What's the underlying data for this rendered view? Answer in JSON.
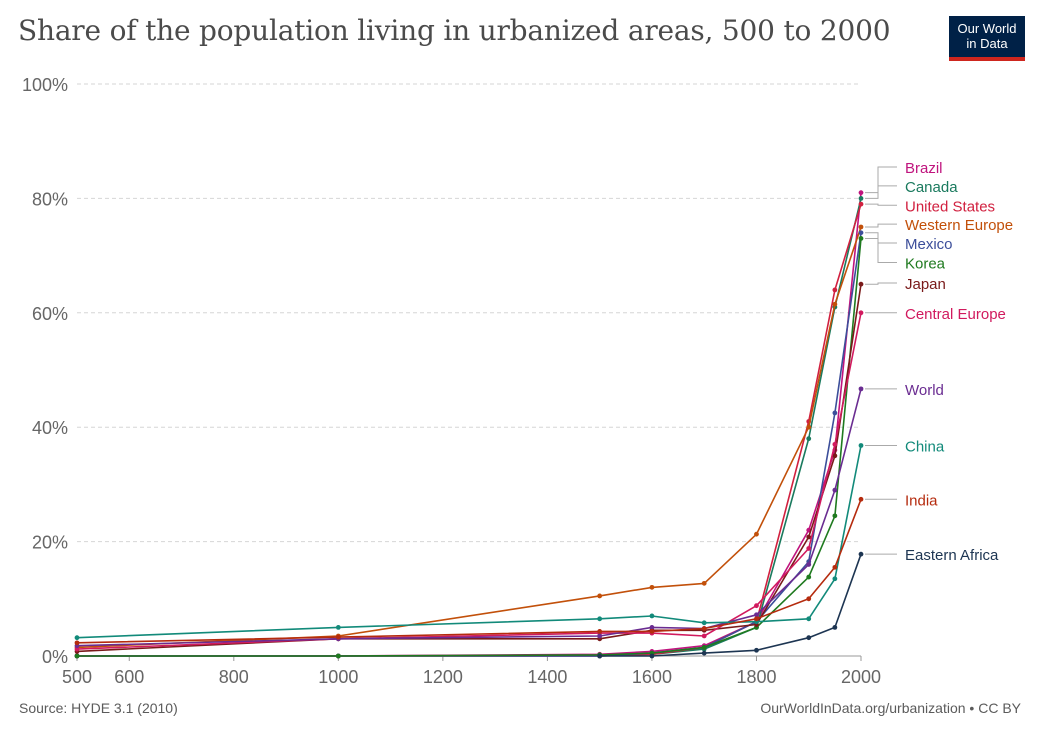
{
  "header": {
    "title": "Share of the population living in urbanized areas, 500 to 2000",
    "logo_line1": "Our World",
    "logo_line2": "in Data"
  },
  "footer": {
    "source": "Source: HYDE 3.1 (2010)",
    "credit": "OurWorldInData.org/urbanization • CC BY"
  },
  "chart_data": {
    "type": "line",
    "title": "Share of the population living in urbanized areas, 500 to 2000",
    "xlabel": "",
    "ylabel": "",
    "xlim": [
      500,
      2000
    ],
    "ylim": [
      0,
      100
    ],
    "x_ticks": [
      500,
      600,
      800,
      1000,
      1200,
      1400,
      1600,
      1800,
      2000
    ],
    "y_ticks": [
      0,
      20,
      40,
      60,
      80,
      100
    ],
    "y_tick_labels": [
      "0%",
      "20%",
      "40%",
      "60%",
      "80%",
      "100%"
    ],
    "grid": "horizontal dashed",
    "legend": "right, labels at line ends",
    "series": [
      {
        "name": "Brazil",
        "color": "#c0147e",
        "label_value": 85.5,
        "points": [
          [
            500,
            0
          ],
          [
            1000,
            0
          ],
          [
            1500,
            0.3
          ],
          [
            1600,
            0.8
          ],
          [
            1700,
            1.8
          ],
          [
            1800,
            6
          ],
          [
            1900,
            22
          ],
          [
            1950,
            36
          ],
          [
            2000,
            81
          ]
        ]
      },
      {
        "name": "Canada",
        "color": "#1a7a5e",
        "label_value": 82.2,
        "points": [
          [
            500,
            0
          ],
          [
            1000,
            0
          ],
          [
            1500,
            0
          ],
          [
            1600,
            0.3
          ],
          [
            1700,
            1.2
          ],
          [
            1800,
            5
          ],
          [
            1900,
            38
          ],
          [
            1950,
            61
          ],
          [
            2000,
            80
          ]
        ]
      },
      {
        "name": "United States",
        "color": "#d1203f",
        "label_value": 78.8,
        "points": [
          [
            500,
            0
          ],
          [
            1000,
            0
          ],
          [
            1500,
            0
          ],
          [
            1600,
            0.3
          ],
          [
            1700,
            1.5
          ],
          [
            1800,
            6
          ],
          [
            1900,
            41
          ],
          [
            1950,
            64
          ],
          [
            2000,
            79
          ]
        ]
      },
      {
        "name": "Western Europe",
        "color": "#c2500a",
        "label_value": 75.5,
        "points": [
          [
            500,
            1.5
          ],
          [
            1000,
            3.5
          ],
          [
            1500,
            10.5
          ],
          [
            1600,
            12
          ],
          [
            1700,
            12.7
          ],
          [
            1800,
            21.3
          ],
          [
            1900,
            40
          ],
          [
            1950,
            61.5
          ],
          [
            2000,
            75
          ]
        ]
      },
      {
        "name": "Mexico",
        "color": "#3c4e9a",
        "label_value": 72.2,
        "points": [
          [
            500,
            0
          ],
          [
            1000,
            0
          ],
          [
            1500,
            0
          ],
          [
            1600,
            0.5
          ],
          [
            1700,
            1.5
          ],
          [
            1800,
            6
          ],
          [
            1900,
            16.5
          ],
          [
            1950,
            42.5
          ],
          [
            2000,
            74
          ]
        ]
      },
      {
        "name": "Korea",
        "color": "#1f7a1f",
        "label_value": 68.8,
        "points": [
          [
            500,
            0
          ],
          [
            1000,
            0
          ],
          [
            1500,
            0.2
          ],
          [
            1600,
            0.5
          ],
          [
            1700,
            1.5
          ],
          [
            1800,
            5
          ],
          [
            1900,
            13.8
          ],
          [
            1950,
            24.5
          ],
          [
            2000,
            73
          ]
        ]
      },
      {
        "name": "Japan",
        "color": "#7a1a1a",
        "label_value": 65.2,
        "points": [
          [
            500,
            0.8
          ],
          [
            1000,
            3
          ],
          [
            1500,
            3
          ],
          [
            1600,
            4.5
          ],
          [
            1700,
            4.5
          ],
          [
            1800,
            5.5
          ],
          [
            1900,
            20.8
          ],
          [
            1950,
            35
          ],
          [
            2000,
            65
          ]
        ]
      },
      {
        "name": "Central Europe",
        "color": "#d11a5e",
        "label_value": 60,
        "points": [
          [
            500,
            1.2
          ],
          [
            1000,
            3
          ],
          [
            1500,
            4
          ],
          [
            1600,
            4
          ],
          [
            1700,
            3.5
          ],
          [
            1800,
            8.8
          ],
          [
            1900,
            18.8
          ],
          [
            1950,
            37
          ],
          [
            2000,
            60
          ]
        ]
      },
      {
        "name": "World",
        "color": "#6a2c91",
        "label_value": 46.7,
        "points": [
          [
            500,
            1.8
          ],
          [
            1000,
            3
          ],
          [
            1500,
            3.5
          ],
          [
            1600,
            5
          ],
          [
            1700,
            4.8
          ],
          [
            1800,
            7.2
          ],
          [
            1900,
            16
          ],
          [
            1950,
            29
          ],
          [
            2000,
            46.7
          ]
        ]
      },
      {
        "name": "China",
        "color": "#128a7a",
        "label_value": 36.8,
        "points": [
          [
            500,
            3.2
          ],
          [
            1000,
            5
          ],
          [
            1500,
            6.5
          ],
          [
            1600,
            7
          ],
          [
            1700,
            5.8
          ],
          [
            1800,
            6
          ],
          [
            1900,
            6.5
          ],
          [
            1950,
            13.5
          ],
          [
            2000,
            36.8
          ]
        ]
      },
      {
        "name": "India",
        "color": "#b52b0e",
        "label_value": 27.4,
        "points": [
          [
            500,
            2.3
          ],
          [
            1000,
            3.3
          ],
          [
            1500,
            4.3
          ],
          [
            1600,
            4.3
          ],
          [
            1700,
            4.8
          ],
          [
            1800,
            6.5
          ],
          [
            1900,
            10
          ],
          [
            1950,
            15.5
          ],
          [
            2000,
            27.4
          ]
        ]
      },
      {
        "name": "Eastern Africa",
        "color": "#1d3552",
        "label_value": 17.8,
        "points": [
          [
            1500,
            0
          ],
          [
            1600,
            0
          ],
          [
            1700,
            0.5
          ],
          [
            1800,
            1
          ],
          [
            1900,
            3.2
          ],
          [
            1950,
            5
          ],
          [
            2000,
            17.8
          ]
        ]
      }
    ]
  }
}
